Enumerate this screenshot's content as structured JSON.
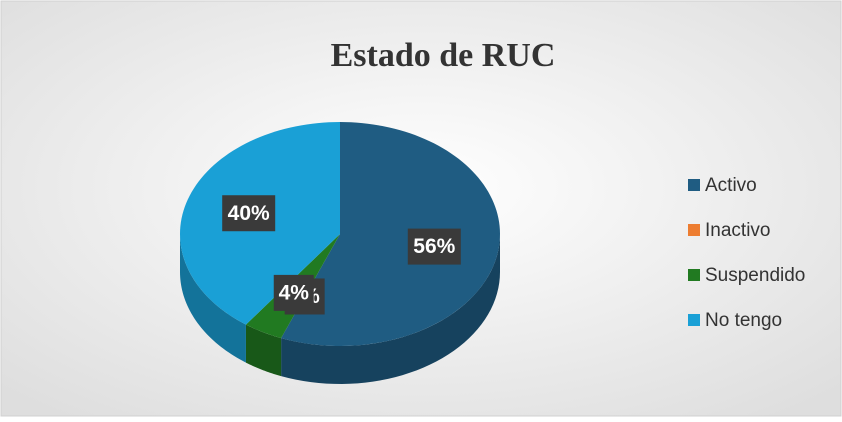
{
  "chart_data": {
    "type": "pie",
    "title": "Estado de RUC",
    "categories": [
      "Activo",
      "Inactivo",
      "Suspendido",
      "No tengo"
    ],
    "values": [
      56,
      0,
      4,
      40
    ],
    "value_labels": [
      "56%",
      "0%",
      "4%",
      "40%"
    ],
    "colors": [
      "#1f5c82",
      "#ed7d31",
      "#217a21",
      "#1aa0d6"
    ],
    "legend": "right"
  }
}
